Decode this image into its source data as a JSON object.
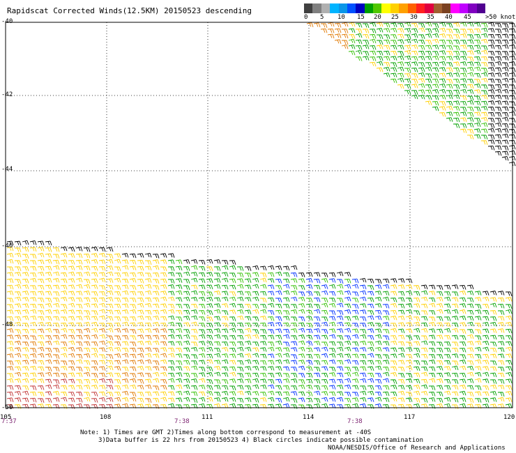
{
  "title": "Rapidscat Corrected Winds(12.5KM) 20150523 descending",
  "colorbar": {
    "swatches": [
      "#404040",
      "#808080",
      "#b0b0b0",
      "#00b4ff",
      "#0a96e8",
      "#0050ff",
      "#0000c0",
      "#00a000",
      "#50c800",
      "#ffff00",
      "#ffd000",
      "#ffa000",
      "#ff6000",
      "#ff2020",
      "#e00040",
      "#a06030",
      "#7a4020",
      "#ff00ff",
      "#c000ff",
      "#8000c0",
      "#500090"
    ],
    "labels": [
      "0",
      "5",
      "10",
      "15",
      "20",
      "25",
      "30",
      "35",
      "40",
      "45",
      ">50 knots"
    ]
  },
  "lat_labels": [
    "-40",
    "-42",
    "-44",
    "-46",
    "-48",
    "-50"
  ],
  "lon_labels": [
    "105",
    "108",
    "111",
    "114",
    "117",
    "120"
  ],
  "time_labels": [
    "7:37",
    "7:38",
    "7:38"
  ],
  "notes": {
    "line1": "Note: 1) Times are GMT 2)Times along bottom correspond to measurement at -40S",
    "line2": "3)Data buffer is 22 hrs from 20150523 4) Black circles indicate possible contamination",
    "line3": "NOAA/NESDIS/Office of Research and Applications"
  }
}
